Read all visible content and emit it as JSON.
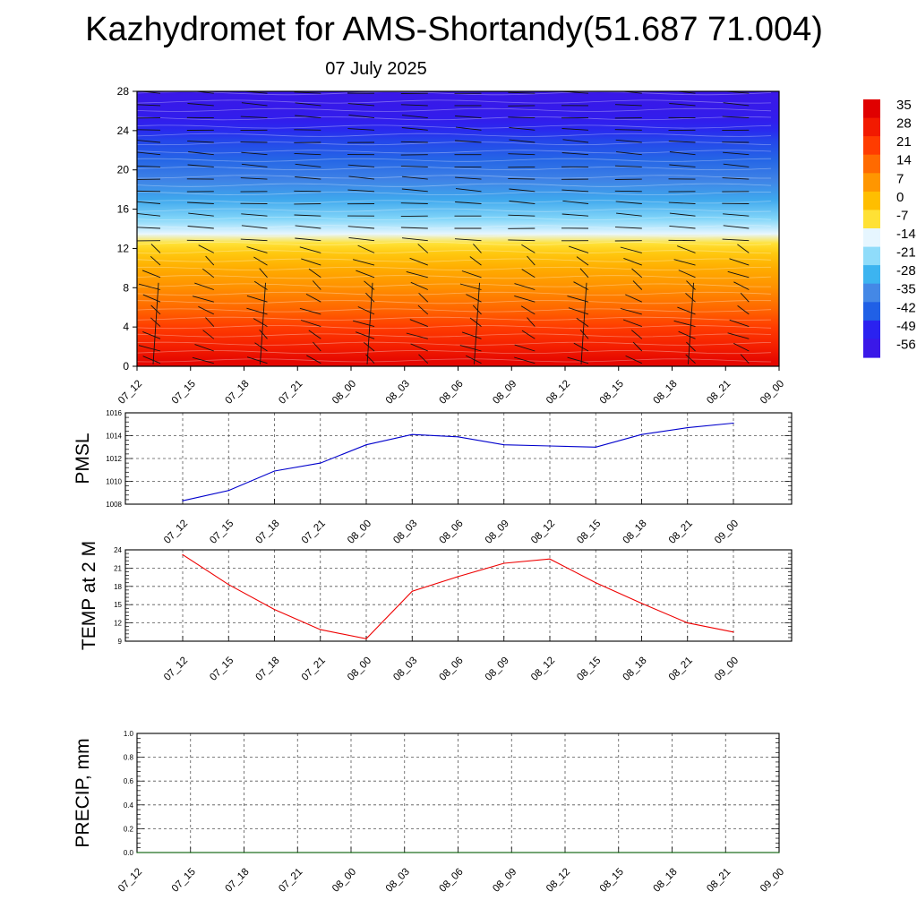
{
  "title": "Kazhydromet for AMS-Shortandy(51.687 71.004)",
  "subtitle": "07 July 2025",
  "colorbar": {
    "labels": [
      "35",
      "28",
      "21",
      "14",
      "7",
      "0",
      "-7",
      "-14",
      "-21",
      "-28",
      "-35",
      "-42",
      "-49",
      "-56"
    ]
  },
  "chart_data": [
    {
      "type": "heatmap",
      "name": "temperature-wind cross section",
      "x_ticks": [
        "07_12",
        "07_15",
        "07_18",
        "07_21",
        "08_00",
        "08_03",
        "08_06",
        "08_09",
        "08_12",
        "08_15",
        "08_18",
        "08_21",
        "09_00"
      ],
      "y_ticks": [
        0,
        4,
        8,
        12,
        16,
        20,
        24,
        28
      ],
      "ylim": [
        0,
        28
      ],
      "levels": [
        0.5,
        2,
        4,
        6,
        8,
        10,
        11.5,
        12.5,
        13.5,
        15,
        17,
        19,
        21,
        23,
        24,
        25,
        26,
        28
      ],
      "temperature_by_level": [
        33,
        27,
        21,
        14,
        8,
        3,
        -2,
        -7,
        -14,
        -22,
        -30,
        -36,
        -41,
        -45,
        -48,
        -52,
        -54,
        -56
      ],
      "colormap": {
        "values": [
          35,
          28,
          21,
          14,
          7,
          0,
          -7,
          -14,
          -21,
          -28,
          -35,
          -42,
          -49,
          -56
        ],
        "colors": [
          "#e00000",
          "#f21a00",
          "#ff3c00",
          "#ff6a00",
          "#ff9600",
          "#ffbe00",
          "#ffe135",
          "#e6f6ff",
          "#8fdcfa",
          "#3cb4f0",
          "#4488e6",
          "#2060e6",
          "#2a22f0",
          "#3a18e8"
        ]
      },
      "wind_barbs": true
    },
    {
      "type": "line",
      "ylabel": "PMSL",
      "x": [
        "07_12",
        "07_15",
        "07_18",
        "07_21",
        "08_00",
        "08_03",
        "08_06",
        "08_09",
        "08_12",
        "08_15",
        "08_18",
        "08_21",
        "09_00"
      ],
      "y": [
        1008.3,
        1009.2,
        1010.9,
        1011.6,
        1013.2,
        1014.1,
        1013.9,
        1013.2,
        1013.1,
        1013.0,
        1014.1,
        1014.7,
        1015.1
      ],
      "ylim": [
        1008,
        1016
      ],
      "y_ticks": [
        "1008",
        "1010",
        "1012",
        "1014",
        "1016"
      ],
      "color": "#0000cc",
      "grid": true
    },
    {
      "type": "line",
      "ylabel": "TEMP at 2 M",
      "x": [
        "07_12",
        "07_15",
        "07_18",
        "07_21",
        "08_00",
        "08_03",
        "08_06",
        "08_09",
        "08_12",
        "08_15",
        "08_18",
        "08_21",
        "09_00"
      ],
      "y": [
        23.2,
        18.3,
        14.2,
        10.9,
        9.4,
        17.2,
        19.6,
        21.8,
        22.5,
        18.6,
        15.2,
        12.0,
        10.5
      ],
      "ylim": [
        9,
        24
      ],
      "y_ticks": [
        "9",
        "12",
        "15",
        "18",
        "21",
        "24"
      ],
      "color": "#ee0000",
      "grid": true
    },
    {
      "type": "line",
      "ylabel": "PRECIP, mm",
      "x": [
        "07_12",
        "07_15",
        "07_18",
        "07_21",
        "08_00",
        "08_03",
        "08_06",
        "08_09",
        "08_12",
        "08_15",
        "08_18",
        "08_21",
        "09_00"
      ],
      "y": [
        0,
        0,
        0,
        0,
        0,
        0,
        0,
        0,
        0,
        0,
        0,
        0,
        0
      ],
      "ylim": [
        0,
        1
      ],
      "y_ticks": [
        "0.0",
        "0.2",
        "0.4",
        "0.6",
        "0.8",
        "1.0"
      ],
      "color": "#006400",
      "grid": true
    }
  ]
}
